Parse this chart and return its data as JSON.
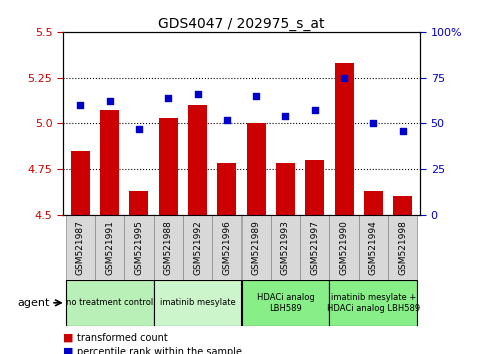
{
  "title": "GDS4047 / 202975_s_at",
  "samples": [
    "GSM521987",
    "GSM521991",
    "GSM521995",
    "GSM521988",
    "GSM521992",
    "GSM521996",
    "GSM521989",
    "GSM521993",
    "GSM521997",
    "GSM521990",
    "GSM521994",
    "GSM521998"
  ],
  "bar_values": [
    4.85,
    5.07,
    4.63,
    5.03,
    5.1,
    4.78,
    5.0,
    4.78,
    4.8,
    5.33,
    4.63,
    4.6
  ],
  "dot_values": [
    60,
    62,
    47,
    64,
    66,
    52,
    65,
    54,
    57,
    75,
    50,
    46
  ],
  "ylim_left": [
    4.5,
    5.5
  ],
  "ylim_right": [
    0,
    100
  ],
  "yticks_left": [
    4.5,
    4.75,
    5.0,
    5.25,
    5.5
  ],
  "yticks_right": [
    0,
    25,
    50,
    75,
    100
  ],
  "ytick_labels_right": [
    "0",
    "25",
    "50",
    "75",
    "100%"
  ],
  "hlines": [
    4.75,
    5.0,
    5.25
  ],
  "bar_color": "#cc0000",
  "dot_color": "#0000cc",
  "bar_bottom": 4.5,
  "agent_groups": [
    {
      "label": "no treatment control",
      "start": 0,
      "end": 3,
      "color": "#b8f0b8"
    },
    {
      "label": "imatinib mesylate",
      "start": 3,
      "end": 6,
      "color": "#ccf5cc"
    },
    {
      "label": "HDACi analog\nLBH589",
      "start": 6,
      "end": 9,
      "color": "#88ee88"
    },
    {
      "label": "imatinib mesylate +\nHDACi analog LBH589",
      "start": 9,
      "end": 12,
      "color": "#88ee88"
    }
  ],
  "agent_label": "agent",
  "legend_items": [
    {
      "color": "#cc0000",
      "label": "transformed count"
    },
    {
      "color": "#0000cc",
      "label": "percentile rank within the sample"
    }
  ],
  "title_fontsize": 10,
  "tick_label_color_left": "#cc0000",
  "tick_label_color_right": "#0000cc",
  "sample_box_color": "#d8d8d8",
  "sample_box_edge": "#888888"
}
